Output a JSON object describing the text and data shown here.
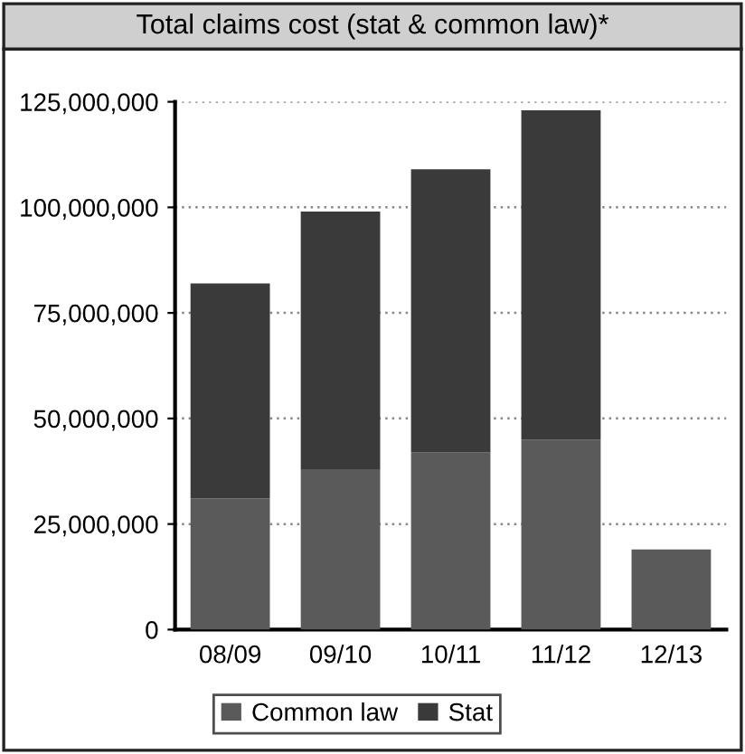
{
  "chart_data": {
    "type": "bar",
    "title": "Total claims cost (stat & common law)*",
    "categories": [
      "08/09",
      "09/10",
      "10/11",
      "11/12",
      "12/13"
    ],
    "stacked": true,
    "series": [
      {
        "name": "Common law",
        "color": "#5a5a5a",
        "values": [
          31000000,
          38000000,
          42000000,
          45000000,
          19000000
        ]
      },
      {
        "name": "Stat",
        "color": "#3a3a3a",
        "values": [
          51000000,
          61000000,
          67000000,
          78000000,
          0
        ]
      }
    ],
    "ylim": [
      0,
      125000000
    ],
    "yticks": [
      {
        "value": 0,
        "label": "0"
      },
      {
        "value": 25000000,
        "label": "25,000,000"
      },
      {
        "value": 50000000,
        "label": "50,000,000"
      },
      {
        "value": 75000000,
        "label": "75,000,000"
      },
      {
        "value": 100000000,
        "label": "100,000,000"
      },
      {
        "value": 125000000,
        "label": "125,000,000"
      }
    ],
    "grid": "y",
    "legend": "bottom"
  }
}
